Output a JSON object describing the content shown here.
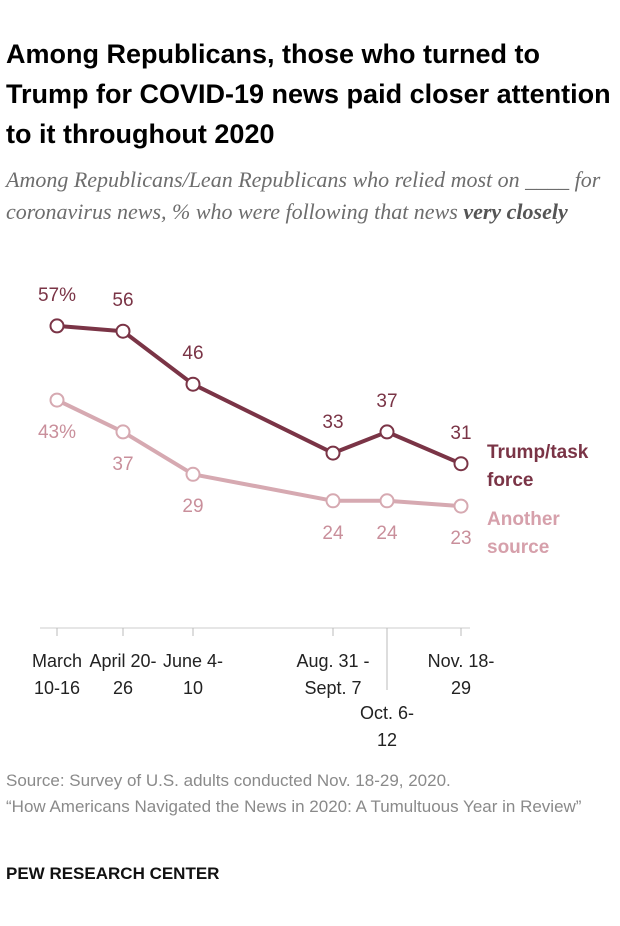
{
  "chart_data": {
    "type": "line",
    "title": "Among Republicans, those who turned to Trump for COVID-19 news paid closer attention to it throughout 2020",
    "subtitle": "Among Republicans/Lean Republicans who relied most on ____ for coronavirus news, % who were following that news",
    "subtitle_emphasis": "very closely",
    "categories": [
      "March 10-16",
      "April 20-26",
      "June 4-10",
      "Aug. 31 - Sept. 7",
      "Oct. 6-12",
      "Nov. 18-29"
    ],
    "ylim": [
      0,
      60
    ],
    "series": [
      {
        "name": "Trump/task force",
        "color": "#7a3446",
        "values": [
          57,
          56,
          46,
          33,
          37,
          31
        ],
        "value_labels": [
          "57%",
          "56",
          "46",
          "33",
          "37",
          "31"
        ]
      },
      {
        "name": "Another source",
        "color": "#d6a9b1",
        "values": [
          43,
          37,
          29,
          24,
          24,
          23
        ],
        "value_labels": [
          "43%",
          "37",
          "29",
          "24",
          "24",
          "23"
        ]
      }
    ],
    "source": "Source: Survey of U.S. adults conducted Nov. 18-29, 2020.",
    "note": "“How Americans Navigated the News in 2020: A Tumultuous Year in Review”",
    "brand": "PEW RESEARCH CENTER"
  }
}
